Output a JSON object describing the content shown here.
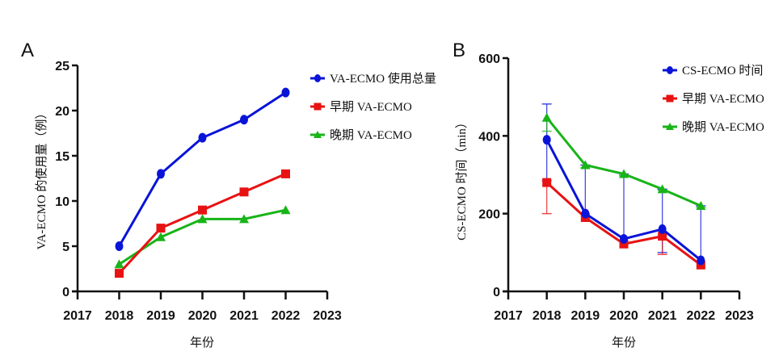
{
  "chart_data": [
    {
      "panel": "A",
      "type": "line",
      "title": "",
      "xlabel": "年份",
      "ylabel": "VA-ECMO 的使用量（例）",
      "xlim": [
        2017,
        2023
      ],
      "ylim": [
        0,
        25
      ],
      "xticks": [
        "2017",
        "2018",
        "2019",
        "2020",
        "2021",
        "2022",
        "2023"
      ],
      "yticks": [
        "0",
        "5",
        "10",
        "15",
        "20",
        "25"
      ],
      "x": [
        2018,
        2019,
        2020,
        2021,
        2022
      ],
      "legend_position": "top-right",
      "grid": false,
      "series": [
        {
          "name": "VA-ECMO 使用总量",
          "color": "#0a14d8",
          "marker": "circle",
          "values": [
            5,
            13,
            17,
            19,
            22
          ]
        },
        {
          "name": "早期 VA-ECMO",
          "color": "#e81212",
          "marker": "square",
          "values": [
            2,
            7,
            9,
            11,
            13
          ]
        },
        {
          "name": "晚期 VA-ECMO",
          "color": "#18b418",
          "marker": "triangle",
          "values": [
            3,
            6,
            8,
            8,
            9
          ]
        }
      ]
    },
    {
      "panel": "B",
      "type": "line",
      "title": "",
      "xlabel": "年份",
      "ylabel": "CS-ECMO 时间（min）",
      "xlim": [
        2017,
        2023
      ],
      "ylim": [
        0,
        600
      ],
      "xticks": [
        "2017",
        "2018",
        "2019",
        "2020",
        "2021",
        "2022",
        "2023"
      ],
      "yticks": [
        "0",
        "200",
        "400",
        "600"
      ],
      "x": [
        2018,
        2019,
        2020,
        2021,
        2022
      ],
      "legend_position": "top-right",
      "grid": false,
      "series": [
        {
          "name": "CS-ECMO 时间",
          "color": "#0a14d8",
          "marker": "circle",
          "values": [
            390,
            200,
            135,
            160,
            80
          ],
          "error_low": [
            285,
            200,
            135,
            100,
            80
          ],
          "error_high": [
            482,
            325,
            302,
            263,
            220
          ]
        },
        {
          "name": "早期 VA-ECMO",
          "color": "#e81212",
          "marker": "square",
          "values": [
            280,
            190,
            122,
            142,
            68
          ],
          "error_low": [
            200,
            190,
            122,
            95,
            68
          ],
          "error_high": [
            280,
            190,
            122,
            142,
            68
          ]
        },
        {
          "name": "晚期 VA-ECMO",
          "color": "#18b418",
          "marker": "triangle",
          "values": [
            447,
            325,
            302,
            263,
            220
          ],
          "error_low": [
            412,
            318,
            298,
            260,
            216
          ],
          "error_high": [
            447,
            325,
            302,
            263,
            220
          ]
        }
      ]
    }
  ]
}
